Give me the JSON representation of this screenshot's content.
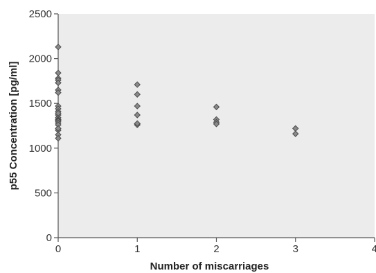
{
  "chart_data": {
    "type": "scatter",
    "title": "",
    "xlabel": "Number of miscarriages",
    "ylabel": "p55 Concentration [pg/ml]",
    "xlim": [
      0,
      4
    ],
    "ylim": [
      0,
      2500
    ],
    "xticks": [
      "0",
      "1",
      "2",
      "3",
      "4"
    ],
    "yticks": [
      "0",
      "500",
      "1000",
      "1500",
      "2000",
      "2500"
    ],
    "grid": false,
    "legend": "none",
    "marker": "diamond",
    "colors": {
      "plot_background": "#ececec",
      "marker_fill": "#8a8a8a",
      "marker_stroke": "#4a4a4a",
      "axis": "#555555"
    },
    "series": [
      {
        "x": [
          0,
          0,
          0,
          0,
          0,
          0,
          0,
          0,
          0,
          0,
          0,
          0,
          0,
          0,
          0,
          0,
          0,
          0,
          0,
          0,
          0,
          0,
          1,
          1,
          1,
          1,
          1,
          1,
          1,
          2,
          2,
          2,
          2,
          3,
          3
        ],
        "y": [
          2130,
          1840,
          1780,
          1760,
          1730,
          1650,
          1620,
          1470,
          1440,
          1410,
          1370,
          1340,
          1320,
          1310,
          1300,
          1280,
          1260,
          1200,
          1150,
          1110,
          1220,
          1390,
          1710,
          1600,
          1470,
          1370,
          1270,
          1260,
          1275,
          1460,
          1320,
          1290,
          1270,
          1220,
          1160
        ]
      }
    ]
  }
}
